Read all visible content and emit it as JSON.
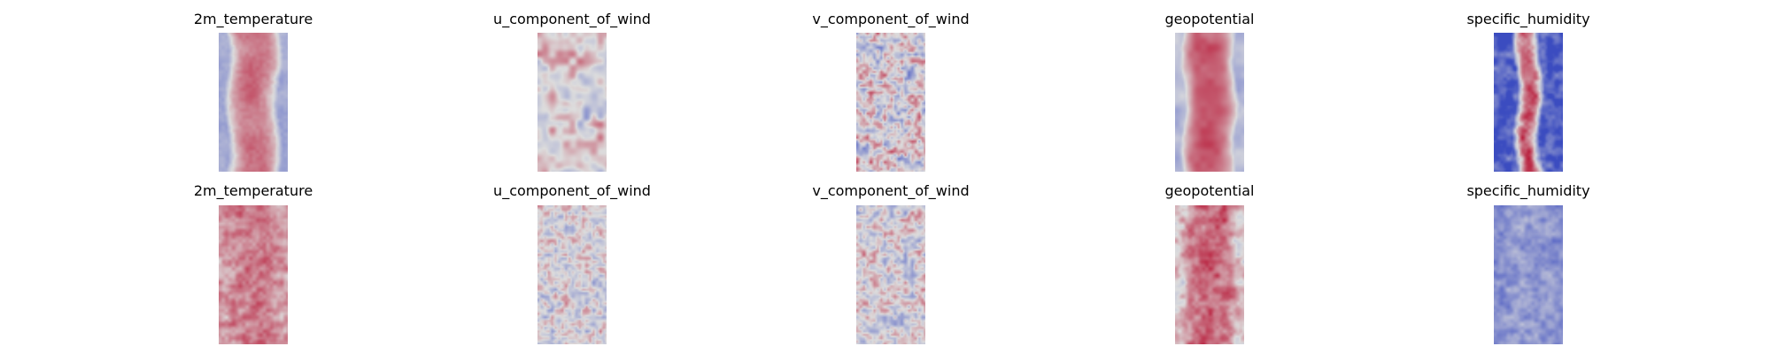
{
  "figure": {
    "background": "#ffffff"
  },
  "colormap": {
    "name": "coolwarm",
    "low": "#3b4cc0",
    "mid": "#dddddd",
    "high": "#b40426"
  },
  "chart_data": [
    {
      "type": "heatmap",
      "row": 0,
      "col": 0,
      "title": "2m_temperature",
      "pattern": "warm-center-band",
      "mean_level": 0.74,
      "edge_level": 0.33,
      "noise": 0.05
    },
    {
      "type": "heatmap",
      "row": 0,
      "col": 1,
      "title": "u_component_of_wind",
      "pattern": "streaky-mixed",
      "mean_level": 0.5,
      "edge_level": 0.5,
      "noise": 0.3
    },
    {
      "type": "heatmap",
      "row": 0,
      "col": 2,
      "title": "v_component_of_wind",
      "pattern": "speckled-mixed",
      "mean_level": 0.5,
      "edge_level": 0.5,
      "noise": 0.34
    },
    {
      "type": "heatmap",
      "row": 0,
      "col": 3,
      "title": "geopotential",
      "pattern": "warm-wavy-band",
      "mean_level": 0.8,
      "edge_level": 0.38,
      "noise": 0.07
    },
    {
      "type": "heatmap",
      "row": 0,
      "col": 4,
      "title": "specific_humidity",
      "pattern": "cold-with-red-core",
      "mean_level": 0.82,
      "edge_level": 0.08,
      "noise": 0.14
    },
    {
      "type": "heatmap",
      "row": 1,
      "col": 0,
      "title": "2m_temperature",
      "pattern": "warm-noisy",
      "mean_level": 0.73,
      "edge_level": 0.62,
      "noise": 0.09
    },
    {
      "type": "heatmap",
      "row": 1,
      "col": 1,
      "title": "u_component_of_wind",
      "pattern": "speckled-mixed",
      "mean_level": 0.5,
      "edge_level": 0.45,
      "noise": 0.24
    },
    {
      "type": "heatmap",
      "row": 1,
      "col": 2,
      "title": "v_component_of_wind",
      "pattern": "speckled-mixed",
      "mean_level": 0.5,
      "edge_level": 0.46,
      "noise": 0.26
    },
    {
      "type": "heatmap",
      "row": 1,
      "col": 3,
      "title": "geopotential",
      "pattern": "warm-noisy-band",
      "mean_level": 0.78,
      "edge_level": 0.55,
      "noise": 0.12
    },
    {
      "type": "heatmap",
      "row": 1,
      "col": 4,
      "title": "specific_humidity",
      "pattern": "cold-blotchy",
      "mean_level": 0.28,
      "edge_level": 0.22,
      "noise": 0.1
    }
  ]
}
